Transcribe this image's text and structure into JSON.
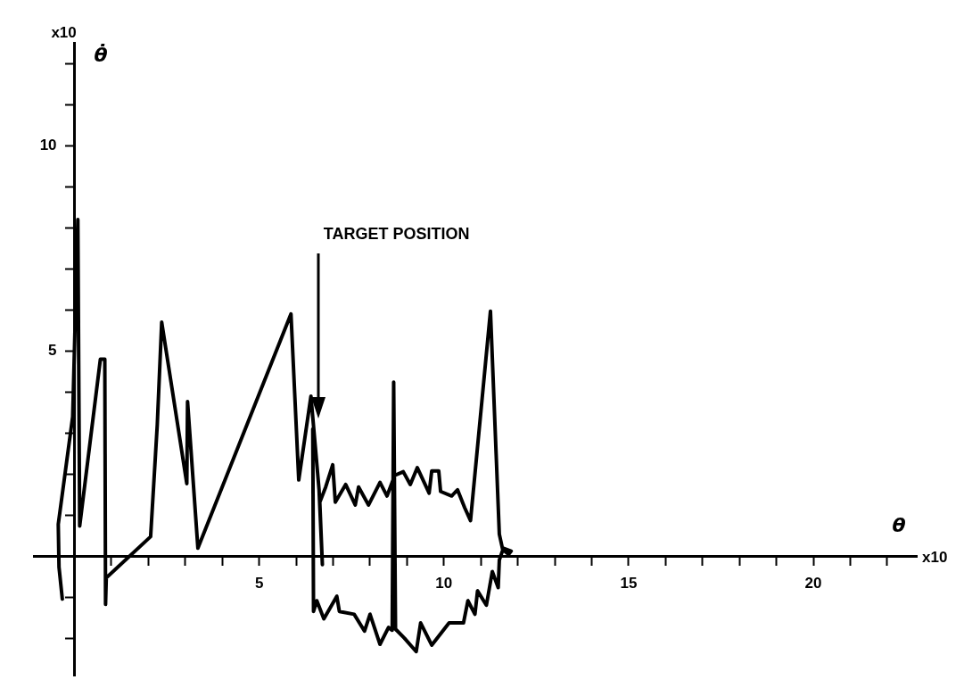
{
  "chart_data": {
    "type": "line",
    "xlabel": "θ",
    "ylabel": "θ̇",
    "annotations": [
      "TARGET POSITION",
      "x10",
      "x10"
    ],
    "xlim": [
      -1.1,
      22.8
    ],
    "ylim": [
      -2.9,
      12.5
    ],
    "xticks": [
      {
        "value": 1,
        "label": null
      },
      {
        "value": 2,
        "label": null
      },
      {
        "value": 3,
        "label": null
      },
      {
        "value": 4,
        "label": null
      },
      5,
      {
        "value": 6,
        "label": null
      },
      {
        "value": 7,
        "label": null
      },
      {
        "value": 8,
        "label": null
      },
      {
        "value": 9,
        "label": null
      },
      10,
      {
        "value": 11,
        "label": null
      },
      {
        "value": 12,
        "label": null
      },
      {
        "value": 13,
        "label": null
      },
      {
        "value": 14,
        "label": null
      },
      15,
      {
        "value": 16,
        "label": null
      },
      {
        "value": 17,
        "label": null
      },
      {
        "value": 18,
        "label": null
      },
      {
        "value": 19,
        "label": null
      },
      20,
      {
        "value": 21,
        "label": null
      },
      {
        "value": 22,
        "label": null
      }
    ],
    "yticks": [
      {
        "value": -2,
        "label": null
      },
      {
        "value": -1,
        "label": null
      },
      {
        "value": 1,
        "label": null
      },
      {
        "value": 2,
        "label": null
      },
      {
        "value": 3,
        "label": null
      },
      {
        "value": 4,
        "label": null
      },
      5,
      {
        "value": 6,
        "label": null
      },
      {
        "value": 7,
        "label": null
      },
      {
        "value": 8,
        "label": null
      },
      {
        "value": 9,
        "label": null
      },
      10,
      {
        "value": 11,
        "label": null
      },
      {
        "value": 12,
        "label": null
      }
    ],
    "grid": false,
    "marker": "none",
    "line_style": "solid",
    "series": [
      {
        "color": "#000000",
        "x": [
          -0.33,
          -0.42,
          -0.44,
          -0.05,
          0.09,
          0.14,
          0.7,
          0.82,
          0.84,
          0.86,
          2.06,
          2.24,
          2.36,
          3.04,
          3.06,
          3.34,
          5.86,
          6.07,
          6.4,
          6.62,
          6.71,
          6.64,
          6.8,
          6.99,
          7.06,
          7.34,
          7.6,
          7.69,
          7.96,
          8.27,
          8.46,
          8.67,
          8.9,
          9.09,
          9.28,
          9.6,
          9.67,
          9.86,
          9.91,
          10.21,
          10.37,
          10.56,
          10.72,
          11.26,
          11.5,
          11.59,
          11.75,
          11.82,
          11.61,
          11.5,
          11.47,
          11.31,
          11.15,
          10.91,
          10.84,
          10.65,
          10.53,
          10.14,
          9.67,
          9.37,
          9.25,
          8.93,
          8.69,
          8.64,
          8.6,
          8.5,
          8.27,
          8.0,
          7.85,
          7.57,
          7.17,
          7.1,
          6.75,
          6.56,
          6.47,
          6.45
        ],
        "values": [
          -1.04,
          -0.26,
          0.78,
          3.4,
          8.2,
          0.74,
          4.8,
          4.8,
          -1.17,
          -0.52,
          0.48,
          3.2,
          5.7,
          1.77,
          3.77,
          0.2,
          5.9,
          1.86,
          3.9,
          1.62,
          -0.2,
          1.32,
          1.69,
          2.23,
          1.32,
          1.75,
          1.25,
          1.69,
          1.25,
          1.8,
          1.47,
          1.97,
          2.06,
          1.75,
          2.16,
          1.54,
          2.08,
          2.08,
          1.58,
          1.47,
          1.62,
          1.19,
          0.87,
          5.97,
          0.54,
          0.17,
          0.05,
          0.13,
          0.2,
          -0.09,
          -0.76,
          -0.37,
          -1.19,
          -0.84,
          -1.41,
          -1.08,
          -1.62,
          -1.62,
          -2.16,
          -1.62,
          -2.32,
          -1.99,
          -1.77,
          4.24,
          -1.8,
          -1.73,
          -2.14,
          -1.41,
          -1.82,
          -1.41,
          -1.34,
          -0.97,
          -1.52,
          -1.08,
          -1.34,
          3.1
        ]
      }
    ]
  }
}
